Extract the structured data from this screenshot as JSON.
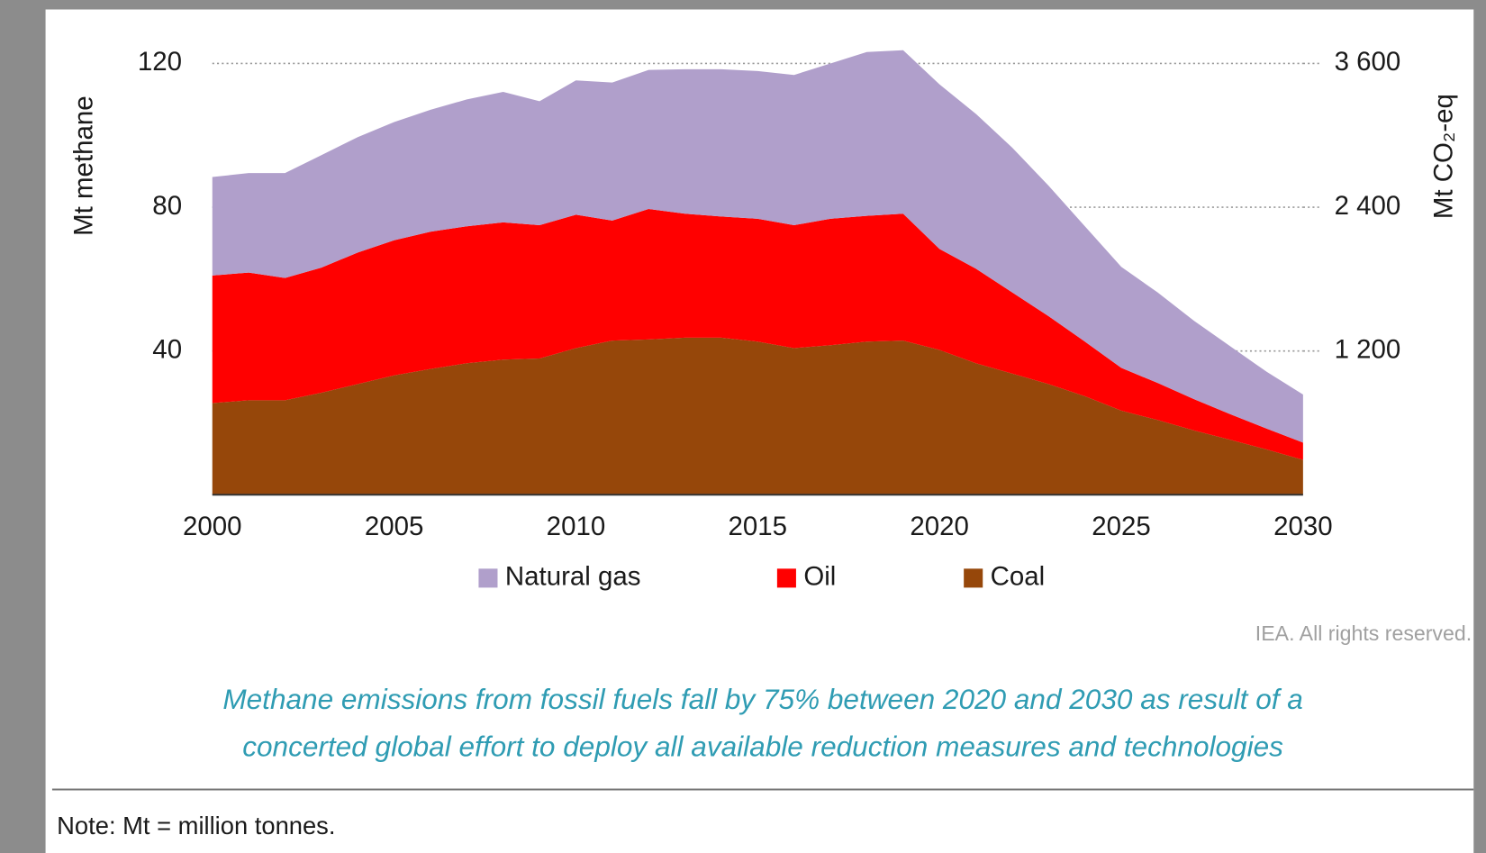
{
  "chart_data": {
    "type": "area",
    "stacked": true,
    "x": [
      2000,
      2001,
      2002,
      2003,
      2004,
      2005,
      2006,
      2007,
      2008,
      2009,
      2010,
      2011,
      2012,
      2013,
      2014,
      2015,
      2016,
      2017,
      2018,
      2019,
      2020,
      2021,
      2022,
      2023,
      2024,
      2025,
      2026,
      2027,
      2028,
      2029,
      2030
    ],
    "series": [
      {
        "name": "Natural gas",
        "color": "#b09fcb",
        "values": [
          27.4,
          27.7,
          29.2,
          31.3,
          32.1,
          32.9,
          33.9,
          35.3,
          36.3,
          34.5,
          37.4,
          38.4,
          38.7,
          40.2,
          41,
          41.1,
          41.8,
          43.2,
          45.6,
          45.5,
          45.8,
          43.1,
          40.3,
          36.3,
          32.1,
          28.1,
          25.2,
          21.8,
          18.9,
          15.8,
          13.4
        ]
      },
      {
        "name": "Oil",
        "color": "#ff0000",
        "values": [
          35.5,
          35.5,
          34,
          34.8,
          36.6,
          37.6,
          38.2,
          38.1,
          38.2,
          37.1,
          37.1,
          33.4,
          36.3,
          34.5,
          33.7,
          34.2,
          34.2,
          35.2,
          35,
          35.3,
          28.1,
          26.3,
          22.6,
          18.9,
          15.2,
          11.9,
          10.3,
          8.7,
          7.1,
          5.8,
          4.8
        ]
      },
      {
        "name": "Coal",
        "color": "#96470a",
        "values": [
          25.5,
          26.3,
          26.3,
          28.4,
          30.8,
          33.2,
          35,
          36.6,
          37.6,
          37.9,
          40.8,
          42.9,
          43.2,
          43.7,
          43.7,
          42.6,
          40.8,
          41.6,
          42.6,
          42.9,
          40.3,
          36.6,
          33.7,
          30.8,
          27.4,
          23.4,
          20.8,
          17.9,
          15.3,
          12.6,
          9.7
        ]
      }
    ],
    "xlim": [
      2000,
      2030
    ],
    "xticks": [
      2000,
      2005,
      2010,
      2015,
      2020,
      2025,
      2030
    ],
    "ylim": [
      0,
      125
    ],
    "yticks": [
      40,
      80,
      120
    ],
    "y2lim": [
      0,
      3750
    ],
    "y2ticks": [
      {
        "value": 1200,
        "label": "1 200"
      },
      {
        "value": 2400,
        "label": "2 400"
      },
      {
        "value": 3600,
        "label": "3 600"
      }
    ],
    "y_label": "Mt methane",
    "y2_label": "Mt CO₂-eq",
    "grid": true,
    "legend": "bottom",
    "source": "IEA. All rights reserved.",
    "caption": [
      "Methane emissions from fossil fuels fall by 75% between 2020 and 2030 as result of a",
      "concerted global effort to deploy all available reduction measures and technologies"
    ],
    "note": "Note: Mt = million tonnes."
  }
}
